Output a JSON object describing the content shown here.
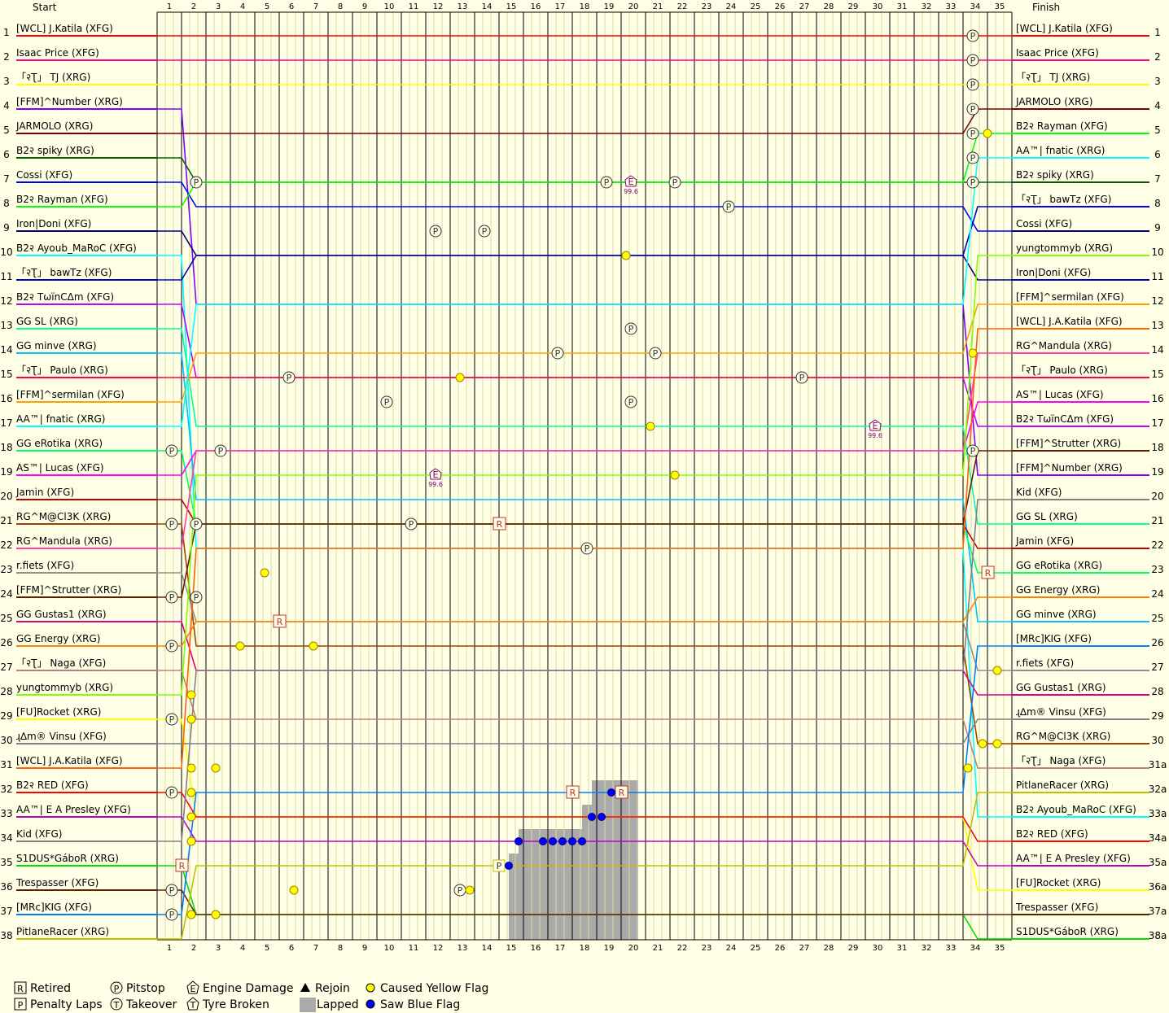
{
  "chart_data": {
    "type": "line",
    "header": {
      "start": "Start",
      "finish": "Finish"
    },
    "laps": [
      1,
      2,
      3,
      4,
      5,
      6,
      7,
      8,
      9,
      10,
      11,
      12,
      13,
      14,
      15,
      16,
      17,
      18,
      19,
      20,
      21,
      22,
      23,
      24,
      25,
      26,
      27,
      28,
      29,
      30,
      31,
      32,
      33,
      34,
      35
    ],
    "positions": [
      1,
      2,
      3,
      4,
      5,
      6,
      7,
      8,
      9,
      10,
      11,
      12,
      13,
      14,
      15,
      16,
      17,
      18,
      19,
      20,
      21,
      22,
      23,
      24,
      25,
      26,
      27,
      28,
      29,
      30,
      31,
      32,
      33,
      34,
      35,
      36,
      37,
      38
    ],
    "finish_position_labels": [
      "1",
      "2",
      "3",
      "4",
      "5",
      "6",
      "7",
      "8",
      "9",
      "10",
      "11",
      "12",
      "13",
      "14",
      "15",
      "16",
      "17",
      "18",
      "19",
      "20",
      "21",
      "22",
      "23",
      "24",
      "25",
      "26",
      "27",
      "28",
      "29",
      "30",
      "31a",
      "32a",
      "33a",
      "34a",
      "35a",
      "36a",
      "37a",
      "38a"
    ],
    "grid": [
      "[WCL] J.Katila (XFG)",
      "Isaac Price (XFG)",
      "「२Ʈ」 TJ (XRG)",
      "[FFM]^Number (XRG)",
      "JARMOLO (XRG)",
      "B2२ spiky (XRG)",
      "Cossi (XFG)",
      "B2२ Rayman (XFG)",
      "Iron|Doni (XFG)",
      "B2२ Ayoub_MaRoC (XFG)",
      "「२Ʈ」 bawTz (XFG)",
      "B2२ TωïnCΔm (XFG)",
      "GG SL (XRG)",
      "GG minve (XRG)",
      "「२Ʈ」 Paulo (XRG)",
      "[FFM]^sermilan (XFG)",
      "AA™| fnatic (XRG)",
      "GG eRotika (XRG)",
      "AS™| Lucas (XFG)",
      "Jamin (XFG)",
      "RG^M@Cl3K (XRG)",
      "RG^Mandula (XRG)",
      "r.fiets (XFG)",
      "[FFM]^Strutter (XRG)",
      "GG Gustas1 (XRG)",
      "GG Energy (XRG)",
      "「२Ʈ」 Naga (XFG)",
      "yungtommyb (XRG)",
      "[FU]Rocket (XRG)",
      "ɻ∆m® Vinsu (XFG)",
      "[WCL] J.A.Katila (XFG)",
      "B2२ RED (XFG)",
      "AA™| E A Presley (XFG)",
      "Kid (XFG)",
      "S1DUS*GáboR (XRG)",
      "Trespasser (XFG)",
      "[MRc]KIG (XFG)",
      "PitlaneRacer (XRG)"
    ],
    "finish": [
      "[WCL] J.Katila (XFG)",
      "Isaac Price (XFG)",
      "「२Ʈ」 TJ (XRG)",
      "JARMOLO (XRG)",
      "B2२ Rayman (XFG)",
      "AA™| fnatic (XRG)",
      "B2२ spiky (XRG)",
      "「२Ʈ」 bawTz (XFG)",
      "Cossi (XFG)",
      "yungtommyb (XRG)",
      "Iron|Doni (XFG)",
      "[FFM]^sermilan (XFG)",
      "[WCL] J.A.Katila (XFG)",
      "RG^Mandula (XRG)",
      "「२Ʈ」 Paulo (XRG)",
      "AS™| Lucas (XFG)",
      "B2२ TωïnCΔm (XFG)",
      "[FFM]^Strutter (XRG)",
      "[FFM]^Number (XRG)",
      "Kid (XFG)",
      "GG SL (XRG)",
      "Jamin (XFG)",
      "GG eRotika (XRG)",
      "GG Energy (XRG)",
      "GG minve (XRG)",
      "[MRc]KIG (XFG)",
      "r.fiets (XFG)",
      "GG Gustas1 (XRG)",
      "ɻ∆m® Vinsu (XFG)",
      "RG^M@Cl3K (XRG)",
      "「२Ʈ」 Naga (XFG)",
      "PitlaneRacer (XRG)",
      "B2२ Ayoub_MaRoC (XFG)",
      "B2२ RED (XFG)",
      "AA™| E A Presley (XFG)",
      "[FU]Rocket (XRG)",
      "Trespasser (XFG)",
      "S1DUS*GáboR (XRG)"
    ],
    "grid_colors": [
      "#ff0000",
      "#ff0080",
      "#ffff00",
      "#8000ff",
      "#800000",
      "#006000",
      "#0000ff",
      "#00ff00",
      "#000080",
      "#00ffff",
      "#0000c0",
      "#c000ff",
      "#00ffa0",
      "#00c0ff",
      "#ff0040",
      "#ffa000",
      "#00ffff",
      "#00ff60",
      "#ff00ff",
      "#c00000",
      "#a04000",
      "#ff40a0",
      "#909090",
      "#602000",
      "#e00080",
      "#ff8000",
      "#c08080",
      "#80ff00",
      "#ffff00",
      "#808080",
      "#ff6000",
      "#ff0000",
      "#c000c0",
      "#808080",
      "#00e000",
      "#602000",
      "#0080ff",
      "#c0c000"
    ],
    "finish_colors": [
      "#ff0000",
      "#ff0080",
      "#ffff00",
      "#800000",
      "#00ff00",
      "#00ffff",
      "#006000",
      "#0000ff",
      "#000080",
      "#80ff00",
      "#0000c0",
      "#ffa000",
      "#ff6000",
      "#ff40a0",
      "#ff0040",
      "#ff00ff",
      "#c000ff",
      "#602000",
      "#8000ff",
      "#808080",
      "#00ffa0",
      "#c00000",
      "#00ff60",
      "#ff8000",
      "#00c0ff",
      "#0080ff",
      "#909090",
      "#e00080",
      "#808080",
      "#a04000",
      "#c08080",
      "#c0c000",
      "#00ffff",
      "#ff0000",
      "#c000c0",
      "#ffff00",
      "#602000",
      "#00e000"
    ],
    "legend": [
      {
        "icon": "R",
        "label": "Retired"
      },
      {
        "icon": "P",
        "label": "Penalty Laps"
      },
      {
        "icon": "P",
        "label": "Pitstop"
      },
      {
        "icon": "T",
        "label": "Takeover"
      },
      {
        "icon": "E",
        "label": "Engine Damage"
      },
      {
        "icon": "T",
        "label": "Tyre Broken"
      },
      {
        "icon": "triangle",
        "label": "Rejoin"
      },
      {
        "icon": "gray-box",
        "label": "Lapped"
      },
      {
        "icon": "yellow-dot",
        "label": "Caused Yellow Flag"
      },
      {
        "icon": "blue-dot",
        "label": "Saw Blue Flag"
      }
    ],
    "markers": [
      {
        "type": "pit",
        "lap": 34,
        "pos": 1
      },
      {
        "type": "pit",
        "lap": 34,
        "pos": 2
      },
      {
        "type": "pit",
        "lap": 34,
        "pos": 3
      },
      {
        "type": "pit",
        "lap": 34,
        "pos": 4
      },
      {
        "type": "pit",
        "lap": 34,
        "pos": 5
      },
      {
        "type": "pit",
        "lap": 34,
        "pos": 6
      },
      {
        "type": "pit",
        "lap": 34,
        "pos": 7
      },
      {
        "type": "pit",
        "lap": 2.2,
        "pos": 7
      },
      {
        "type": "pit",
        "lap": 12,
        "pos": 9
      },
      {
        "type": "pit",
        "lap": 14,
        "pos": 9
      },
      {
        "type": "pit",
        "lap": 19,
        "pos": 7
      },
      {
        "type": "pit",
        "lap": 21.8,
        "pos": 7
      },
      {
        "type": "pit",
        "lap": 24,
        "pos": 8
      },
      {
        "type": "pit",
        "lap": 20,
        "pos": 13
      },
      {
        "type": "pit",
        "lap": 17,
        "pos": 14
      },
      {
        "type": "pit",
        "lap": 21,
        "pos": 14
      },
      {
        "type": "pit",
        "lap": 6,
        "pos": 15
      },
      {
        "type": "pit",
        "lap": 27,
        "pos": 15
      },
      {
        "type": "pit",
        "lap": 10,
        "pos": 16
      },
      {
        "type": "pit",
        "lap": 20,
        "pos": 16
      },
      {
        "type": "pit",
        "lap": 1.2,
        "pos": 18
      },
      {
        "type": "pit",
        "lap": 3.2,
        "pos": 18
      },
      {
        "type": "pit",
        "lap": 34,
        "pos": 18
      },
      {
        "type": "pit",
        "lap": 1.2,
        "pos": 21
      },
      {
        "type": "pit",
        "lap": 2.2,
        "pos": 21
      },
      {
        "type": "pit",
        "lap": 11,
        "pos": 21
      },
      {
        "type": "pit",
        "lap": 18.2,
        "pos": 22
      },
      {
        "type": "pit",
        "lap": 1.2,
        "pos": 24
      },
      {
        "type": "pit",
        "lap": 2.2,
        "pos": 24
      },
      {
        "type": "pit",
        "lap": 1.2,
        "pos": 26
      },
      {
        "type": "pit",
        "lap": 1.2,
        "pos": 29
      },
      {
        "type": "pit",
        "lap": 1.2,
        "pos": 32
      },
      {
        "type": "pit",
        "lap": 1.2,
        "pos": 36
      },
      {
        "type": "pit",
        "lap": 13,
        "pos": 36
      },
      {
        "type": "pit",
        "lap": 1.2,
        "pos": 37
      },
      {
        "type": "pen",
        "lap": 14.6,
        "pos": 35
      },
      {
        "type": "ret",
        "lap": 14.6,
        "pos": 21
      },
      {
        "type": "ret",
        "lap": 5.6,
        "pos": 25
      },
      {
        "type": "ret",
        "lap": 34.6,
        "pos": 23
      },
      {
        "type": "ret",
        "lap": 17.6,
        "pos": 32
      },
      {
        "type": "ret",
        "lap": 19.6,
        "pos": 32
      },
      {
        "type": "ret",
        "lap": 1.6,
        "pos": 35
      },
      {
        "type": "eng",
        "lap": 20,
        "pos": 7
      },
      {
        "type": "eng",
        "lap": 12,
        "pos": 19
      },
      {
        "type": "eng",
        "lap": 30,
        "pos": 17
      },
      {
        "type": "yel",
        "lap": 13,
        "pos": 15
      },
      {
        "type": "yel",
        "lap": 19.8,
        "pos": 10
      },
      {
        "type": "yel",
        "lap": 20.8,
        "pos": 17
      },
      {
        "type": "yel",
        "lap": 21.8,
        "pos": 19
      },
      {
        "type": "yel",
        "lap": 34,
        "pos": 14
      },
      {
        "type": "yel",
        "lap": 34.6,
        "pos": 5
      },
      {
        "type": "yel",
        "lap": 5,
        "pos": 23
      },
      {
        "type": "yel",
        "lap": 4,
        "pos": 26
      },
      {
        "type": "yel",
        "lap": 7,
        "pos": 26
      },
      {
        "type": "yel",
        "lap": 2,
        "pos": 28
      },
      {
        "type": "yel",
        "lap": 2,
        "pos": 29
      },
      {
        "type": "yel",
        "lap": 2,
        "pos": 31
      },
      {
        "type": "yel",
        "lap": 3,
        "pos": 31
      },
      {
        "type": "yel",
        "lap": 2,
        "pos": 32
      },
      {
        "type": "yel",
        "lap": 2,
        "pos": 33
      },
      {
        "type": "yel",
        "lap": 2,
        "pos": 34
      },
      {
        "type": "yel",
        "lap": 6.2,
        "pos": 36
      },
      {
        "type": "yel",
        "lap": 13.4,
        "pos": 36
      },
      {
        "type": "yel",
        "lap": 2,
        "pos": 37
      },
      {
        "type": "yel",
        "lap": 3,
        "pos": 37
      },
      {
        "type": "yel",
        "lap": 33.8,
        "pos": 31
      },
      {
        "type": "yel",
        "lap": 35,
        "pos": 27
      },
      {
        "type": "yel",
        "lap": 35,
        "pos": 30
      },
      {
        "type": "yel",
        "lap": 34.4,
        "pos": 30
      },
      {
        "type": "blu",
        "lap": 15,
        "pos": 35
      },
      {
        "type": "blu",
        "lap": 15.4,
        "pos": 34
      },
      {
        "type": "blu",
        "lap": 16.4,
        "pos": 34
      },
      {
        "type": "blu",
        "lap": 16.8,
        "pos": 34
      },
      {
        "type": "blu",
        "lap": 17.2,
        "pos": 34
      },
      {
        "type": "blu",
        "lap": 17.6,
        "pos": 34
      },
      {
        "type": "blu",
        "lap": 18,
        "pos": 34
      },
      {
        "type": "blu",
        "lap": 18.4,
        "pos": 33
      },
      {
        "type": "blu",
        "lap": 18.8,
        "pos": 33
      },
      {
        "type": "blu",
        "lap": 19.2,
        "pos": 32
      }
    ],
    "engine_label": "99.6",
    "lapped_blocks": [
      {
        "from": 15,
        "to": 15.4,
        "pos": 35
      },
      {
        "from": 15.4,
        "to": 18,
        "pos": 34
      },
      {
        "from": 18,
        "to": 18.4,
        "pos": 33
      },
      {
        "from": 18.4,
        "to": 20.3,
        "pos": 32
      }
    ]
  }
}
